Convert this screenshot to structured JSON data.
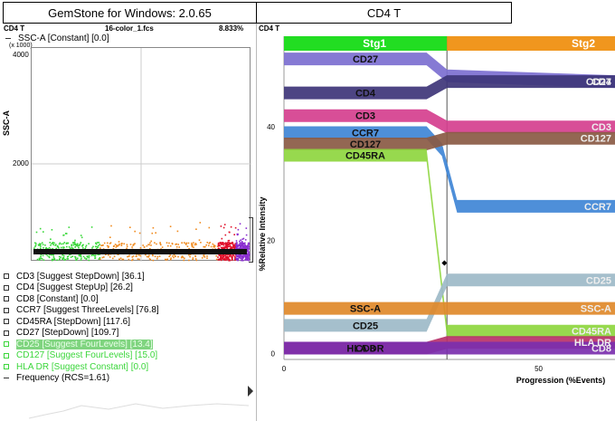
{
  "window": {
    "left_title": "GemStone for Windows: 2.0.65",
    "right_title": "CD4 T"
  },
  "left_panel": {
    "population": "CD4 T",
    "file": "16-color_1.fcs",
    "percent": "8.833%",
    "param_label": "SSC-A [Constant] [0.0]",
    "y_axis_label": "SSC-A",
    "y_scale_note": "(x 1000)",
    "y_ticks": [
      "4000",
      "2000"
    ]
  },
  "right_panel": {
    "population": "CD4 T"
  },
  "legend": [
    {
      "text": "CD3 [Suggest StepDown] [36.1]",
      "style": "box"
    },
    {
      "text": "CD4 [Suggest StepUp] [26.2]",
      "style": "box"
    },
    {
      "text": "CD8 [Constant] [0.0]",
      "style": "box"
    },
    {
      "text": "CCR7 [Suggest ThreeLevels] [76.8]",
      "style": "box"
    },
    {
      "text": "CD45RA [StepDown] [117.6]",
      "style": "box"
    },
    {
      "text": "CD27 [StepDown] [109.7]",
      "style": "box"
    },
    {
      "text": "CD25 [Suggest FourLevels] [13.4]",
      "style": "box-green-hl"
    },
    {
      "text": "CD127 [Suggest FourLevels] [15.0]",
      "style": "box-green"
    },
    {
      "text": "HLA DR [Suggest Constant] [0.0]",
      "style": "box-green"
    },
    {
      "text": "Frequency (RCS=1.61)",
      "style": "dash"
    }
  ],
  "chart_data": {
    "type": "area",
    "xlabel": "Progression (%Events)",
    "ylabel": "%Relative Intensity",
    "x_ticks": [
      0,
      50
    ],
    "y_ticks": [
      0,
      20,
      40
    ],
    "xlim": [
      0,
      65
    ],
    "ylim": [
      -1,
      56
    ],
    "stage_labels": [
      "Stg1",
      "Stg2"
    ],
    "stage_split": 32,
    "series": [
      {
        "name": "CD27",
        "color": "#7c6fd0",
        "points": [
          [
            0,
            52
          ],
          [
            28,
            52
          ],
          [
            32,
            49
          ],
          [
            65,
            48
          ]
        ]
      },
      {
        "name": "CD4",
        "color": "#3e3578",
        "points": [
          [
            0,
            46
          ],
          [
            28,
            46
          ],
          [
            32,
            48
          ],
          [
            65,
            48
          ]
        ]
      },
      {
        "name": "CD3",
        "color": "#d53f8e",
        "points": [
          [
            0,
            42
          ],
          [
            28,
            42
          ],
          [
            32,
            40
          ],
          [
            65,
            40
          ]
        ]
      },
      {
        "name": "CCR7",
        "color": "#3f86d6",
        "points": [
          [
            0,
            39
          ],
          [
            28,
            39
          ],
          [
            31,
            36
          ],
          [
            34,
            26
          ],
          [
            65,
            26
          ]
        ]
      },
      {
        "name": "CD127",
        "color": "#8a5a44",
        "points": [
          [
            0,
            37
          ],
          [
            28,
            37
          ],
          [
            32,
            38
          ],
          [
            65,
            38
          ]
        ]
      },
      {
        "name": "CD45RA",
        "color": "#8ed63f",
        "points": [
          [
            0,
            35
          ],
          [
            28,
            35
          ],
          [
            32,
            4
          ],
          [
            65,
            4
          ]
        ]
      },
      {
        "name": "CD25",
        "color": "#9dbac8",
        "points": [
          [
            0,
            5
          ],
          [
            28,
            5
          ],
          [
            32,
            13
          ],
          [
            65,
            13
          ]
        ]
      },
      {
        "name": "SSC-A",
        "color": "#e0892a",
        "points": [
          [
            0,
            8
          ],
          [
            65,
            8
          ]
        ]
      },
      {
        "name": "HLA DR",
        "color": "#b8326a",
        "points": [
          [
            0,
            1
          ],
          [
            28,
            1
          ],
          [
            32,
            2
          ],
          [
            65,
            2
          ]
        ]
      },
      {
        "name": "CD8",
        "color": "#7b2fae",
        "points": [
          [
            0,
            1
          ],
          [
            65,
            1
          ]
        ]
      }
    ],
    "right_label_values": {
      "CD3": "CD3",
      "CD27": "CD27",
      "CD4": "CD4"
    }
  }
}
